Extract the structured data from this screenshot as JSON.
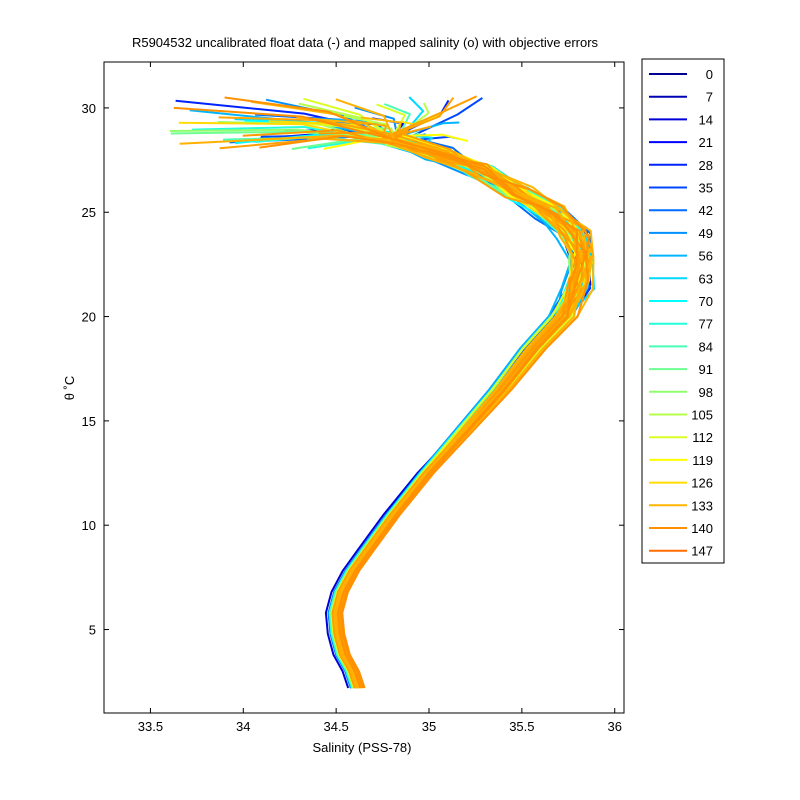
{
  "chart_data": {
    "type": "line",
    "title": "R5904532 uncalibrated float data (-) and mapped salinity (o) with objective errors",
    "xlabel": "Salinity (PSS-78)",
    "ylabel": "θ ˚C",
    "xlim": [
      33.25,
      36.05
    ],
    "ylim": [
      1,
      32.2
    ],
    "xticks": [
      33.5,
      34,
      34.5,
      35,
      35.5,
      36
    ],
    "xtick_labels": [
      "33.5",
      "34",
      "34.5",
      "35",
      "35.5",
      "36"
    ],
    "yticks": [
      5,
      10,
      15,
      20,
      25,
      30
    ],
    "ytick_labels": [
      "5",
      "10",
      "15",
      "20",
      "25",
      "30"
    ],
    "grid": false,
    "legend_position": "outside-right",
    "colormap": "jet",
    "legend": [
      {
        "label": "0",
        "color": "#000090"
      },
      {
        "label": "7",
        "color": "#0000b4"
      },
      {
        "label": "14",
        "color": "#0000d9"
      },
      {
        "label": "21",
        "color": "#0000ff"
      },
      {
        "label": "28",
        "color": "#0024ff"
      },
      {
        "label": "35",
        "color": "#0048ff"
      },
      {
        "label": "42",
        "color": "#006dff"
      },
      {
        "label": "49",
        "color": "#0091ff"
      },
      {
        "label": "56",
        "color": "#00b6ff"
      },
      {
        "label": "63",
        "color": "#00daff"
      },
      {
        "label": "70",
        "color": "#00ffff"
      },
      {
        "label": "77",
        "color": "#24ffdb"
      },
      {
        "label": "84",
        "color": "#48ffb6"
      },
      {
        "label": "91",
        "color": "#6dff91"
      },
      {
        "label": "98",
        "color": "#91ff6d"
      },
      {
        "label": "105",
        "color": "#b6ff48"
      },
      {
        "label": "112",
        "color": "#daff24"
      },
      {
        "label": "119",
        "color": "#ffff00"
      },
      {
        "label": "126",
        "color": "#ffdb00"
      },
      {
        "label": "133",
        "color": "#ffb600"
      },
      {
        "label": "140",
        "color": "#ff9100"
      },
      {
        "label": "147",
        "color": "#ff6d00"
      }
    ],
    "profile_colors": [
      "#0000d9",
      "#0024ff",
      "#0048ff",
      "#006dff",
      "#0091ff",
      "#00b6ff",
      "#00daff",
      "#00ffff",
      "#24ffdb",
      "#48ffb6",
      "#6dff91",
      "#91ff6d",
      "#b6ff48",
      "#daff24",
      "#ffff00",
      "#ffdb00",
      "#ffb600",
      "#ffa500",
      "#ff9900",
      "#ffa000",
      "#ffb000",
      "#ff9100"
    ],
    "series_template": {
      "salinity": [
        34.61,
        34.58,
        34.53,
        34.5,
        34.49,
        34.52,
        34.58,
        34.66,
        34.8,
        34.98,
        35.18,
        35.38,
        35.56,
        35.72,
        35.8,
        35.82,
        35.78,
        35.66,
        35.48,
        35.28,
        35.05,
        34.8,
        34.4,
        34.0
      ],
      "theta": [
        2.2,
        3.0,
        3.8,
        4.8,
        5.8,
        6.8,
        7.8,
        8.8,
        10.5,
        12.5,
        14.5,
        16.5,
        18.5,
        20.0,
        21.5,
        22.8,
        24.0,
        25.0,
        26.0,
        27.0,
        27.8,
        28.5,
        29.0,
        29.5
      ]
    }
  }
}
